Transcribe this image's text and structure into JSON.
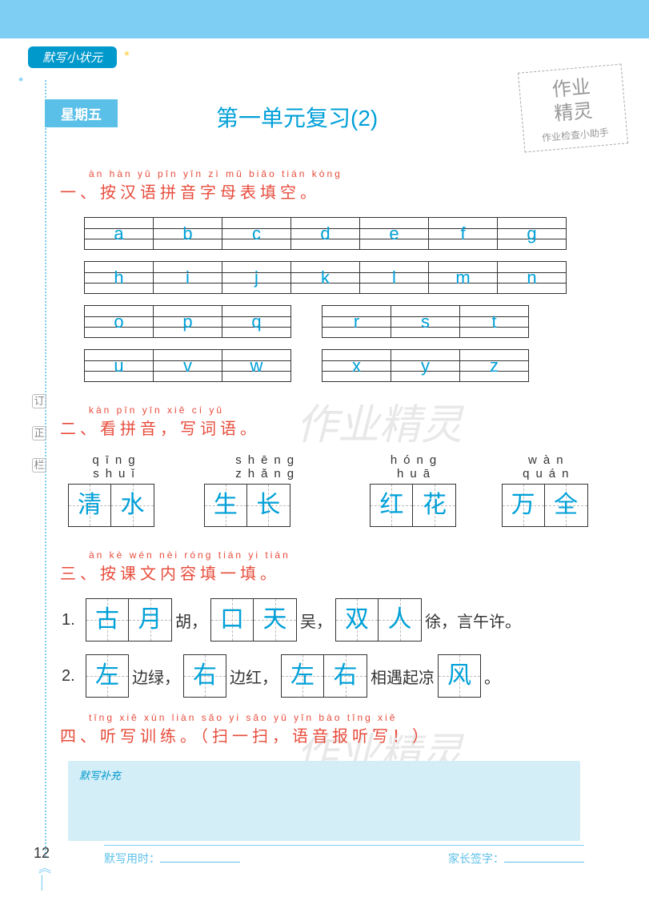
{
  "book_title": "默写小状元",
  "day_label": "星期五",
  "page_title": "第一单元复习(2)",
  "stamp": {
    "line1": "作业",
    "line2": "精灵",
    "line3": "作业检查小助手"
  },
  "section1": {
    "pinyin": "àn hàn yǔ pīn yīn zì mǔ biǎo tián kòng",
    "title": "一、按汉语拼音字母表填空。",
    "rows": [
      [
        "a",
        "b",
        "c",
        "d",
        "e",
        "f",
        "g"
      ],
      [
        "h",
        "i",
        "j",
        "k",
        "l",
        "m",
        "n"
      ]
    ],
    "split_rows": [
      {
        "left": [
          "o",
          "p",
          "q"
        ],
        "right": [
          "r",
          "s",
          "t"
        ]
      },
      {
        "left": [
          "u",
          "v",
          "w"
        ],
        "right": [
          "x",
          "y",
          "z"
        ]
      }
    ]
  },
  "section2": {
    "pinyin": "kàn pīn yīn  xiě cí yǔ",
    "title": "二、看拼音，写词语。",
    "words": [
      {
        "pinyin": "qīng  shuǐ",
        "chars": [
          "清",
          "水"
        ]
      },
      {
        "pinyin": "shēng zhǎng",
        "chars": [
          "生",
          "长"
        ]
      },
      {
        "pinyin": "hóng  huā",
        "chars": [
          "红",
          "花"
        ]
      },
      {
        "pinyin": "wàn  quán",
        "chars": [
          "万",
          "全"
        ]
      }
    ]
  },
  "section3": {
    "pinyin": "àn kè wén nèi róng tián yi tián",
    "title": "三、按课文内容填一填。",
    "line1": {
      "num": "1.",
      "parts": [
        {
          "box": [
            "古",
            "月"
          ]
        },
        {
          "text": " 胡，"
        },
        {
          "box": [
            "口",
            "天"
          ]
        },
        {
          "text": " 吴，"
        },
        {
          "box": [
            "双",
            "人"
          ]
        },
        {
          "text": " 徐，言午许。"
        }
      ]
    },
    "line2": {
      "num": "2.",
      "parts": [
        {
          "box": [
            "左"
          ]
        },
        {
          "text": " 边绿，"
        },
        {
          "box": [
            "右"
          ]
        },
        {
          "text": " 边红，"
        },
        {
          "box": [
            "左",
            "右"
          ]
        },
        {
          "text": " 相遇起凉 "
        },
        {
          "box": [
            "风"
          ]
        },
        {
          "text": " 。"
        }
      ]
    }
  },
  "section4": {
    "pinyin": "tīng xiě xùn liàn        sǎo yi sǎo    yǔ yīn bào tīng xiě",
    "title": "四、听写训练。（扫一扫，语音报听写！）",
    "scratch_label": "默写补充"
  },
  "margin_marks": [
    "订",
    "正",
    "栏"
  ],
  "watermark": "作业精灵",
  "page_number": "12",
  "footer": {
    "time_label": "默写用时：",
    "sign_label": "家长签字："
  }
}
